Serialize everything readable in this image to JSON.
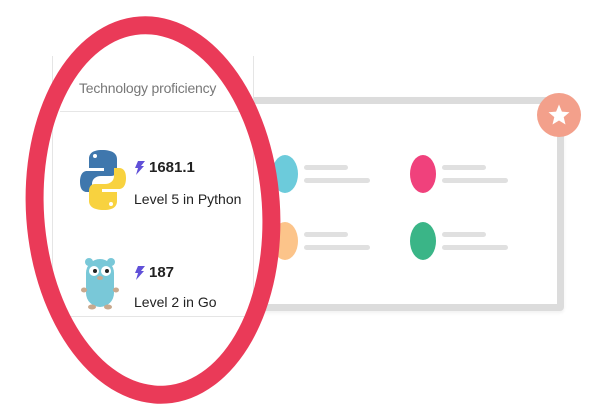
{
  "panel": {
    "title": "Technology proficiency",
    "skills": [
      {
        "score": "1681.1",
        "level": "Level 5 in Python",
        "icon": "python-logo-icon"
      },
      {
        "score": "187",
        "level": "Level 2 in Go",
        "icon": "go-gopher-icon"
      }
    ]
  },
  "contacts": [
    {
      "color": "#6ccbdb"
    },
    {
      "color": "#f0417c"
    },
    {
      "color": "#fcc48a"
    },
    {
      "color": "#3ab587"
    }
  ],
  "badge": {
    "icon": "star-icon",
    "color": "#f3a08b"
  },
  "colors": {
    "ring": "#ea3a58",
    "bolt": "#6050d8"
  }
}
